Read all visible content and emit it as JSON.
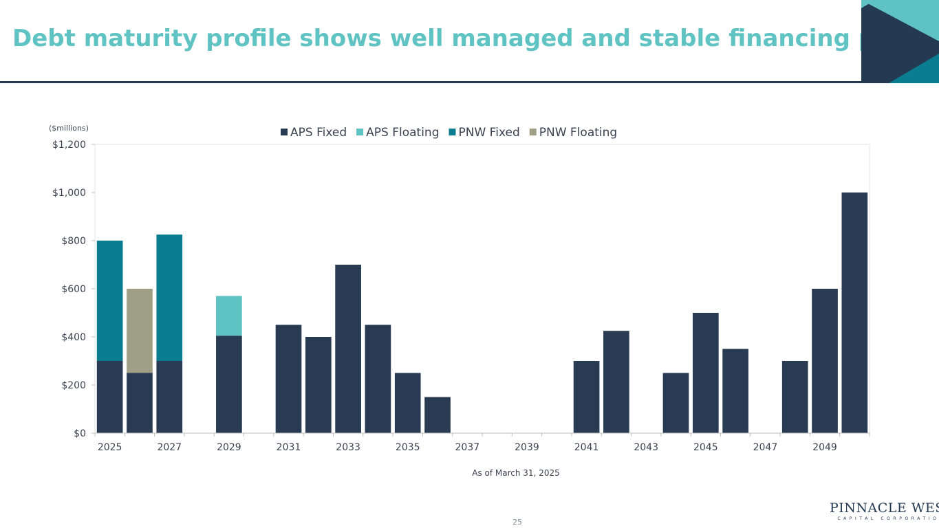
{
  "slide": {
    "title": "Debt maturity profile shows well managed and stable financing plan",
    "page_number": "25",
    "logo_main": "PINNACLE WEST",
    "logo_sub": "CAPITAL CORPORATION"
  },
  "colors": {
    "title": "#5ec3c2",
    "dark_navy": "#243a52",
    "teal_light": "#5ec3c2",
    "teal_dark": "#0b7d91"
  },
  "chart_data": {
    "type": "bar",
    "stacked": true,
    "title": "",
    "unit_label": "($millions)",
    "xlabel": "As of March 31, 2025",
    "ylabel": "",
    "ylim": [
      0,
      1200
    ],
    "yticks": [
      "$0",
      "$200",
      "$400",
      "$600",
      "$800",
      "$1,000",
      "$1,200"
    ],
    "ytick_values": [
      0,
      200,
      400,
      600,
      800,
      1000,
      1200
    ],
    "xticks": [
      "2025",
      "2027",
      "2029",
      "2031",
      "2033",
      "2035",
      "2037",
      "2039",
      "2041",
      "2043",
      "2045",
      "2047",
      "2049"
    ],
    "categories": [
      "2025",
      "2026",
      "2027",
      "2028",
      "2029",
      "2030",
      "2031",
      "2032",
      "2033",
      "2034",
      "2035",
      "2036",
      "2037",
      "2038",
      "2039",
      "2040",
      "2041",
      "2042",
      "2043",
      "2044",
      "2045",
      "2046",
      "2047",
      "2048",
      "2049",
      "2050"
    ],
    "legend_position": "top",
    "series": [
      {
        "name": "APS Fixed",
        "color": "#283b53",
        "values": [
          300,
          250,
          300,
          0,
          405,
          0,
          450,
          400,
          700,
          450,
          250,
          150,
          0,
          0,
          0,
          0,
          300,
          425,
          0,
          250,
          500,
          350,
          0,
          300,
          600,
          1000
        ]
      },
      {
        "name": "APS Floating",
        "color": "#5ec3c2",
        "values": [
          0,
          0,
          0,
          0,
          165,
          0,
          0,
          0,
          0,
          0,
          0,
          0,
          0,
          0,
          0,
          0,
          0,
          0,
          0,
          0,
          0,
          0,
          0,
          0,
          0,
          0
        ]
      },
      {
        "name": "PNW Fixed",
        "color": "#0b7d91",
        "values": [
          500,
          0,
          525,
          0,
          0,
          0,
          0,
          0,
          0,
          0,
          0,
          0,
          0,
          0,
          0,
          0,
          0,
          0,
          0,
          0,
          0,
          0,
          0,
          0,
          0,
          0
        ]
      },
      {
        "name": "PNW Floating",
        "color": "#9f9f85",
        "values": [
          0,
          350,
          0,
          0,
          0,
          0,
          0,
          0,
          0,
          0,
          0,
          0,
          0,
          0,
          0,
          0,
          0,
          0,
          0,
          0,
          0,
          0,
          0,
          0,
          0,
          0
        ]
      }
    ]
  }
}
